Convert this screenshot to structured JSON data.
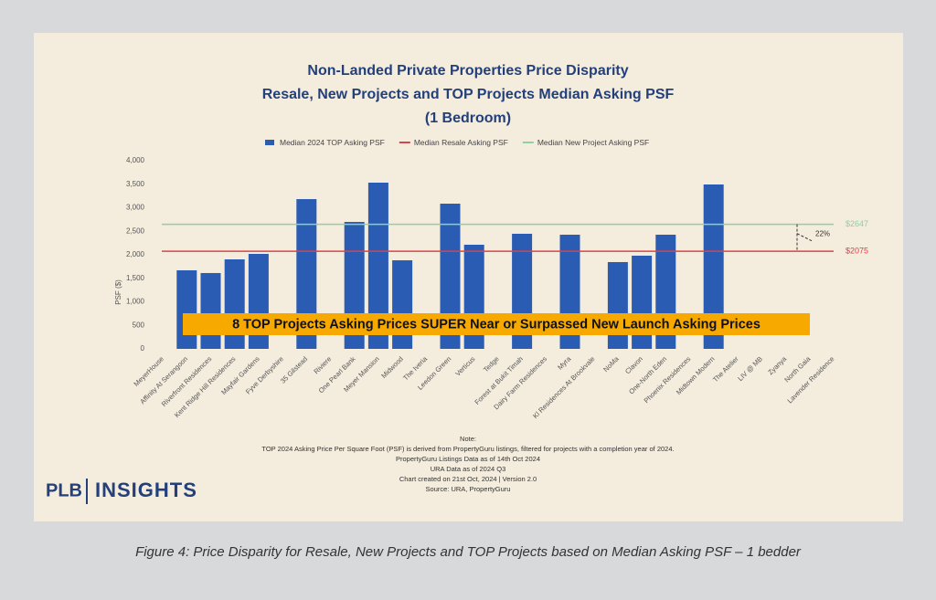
{
  "chart_data": {
    "type": "bar",
    "title": [
      "Non-Landed Private Properties Price Disparity",
      "Resale, New Projects and TOP Projects Median Asking PSF",
      "(1 Bedroom)"
    ],
    "y_label": "PSF ($)",
    "categories": [
      "MeyerHouse",
      "Affinity At Serangoon",
      "Riverfront Residences",
      "Kent Ridge Hill Residences",
      "Mayfair Gardens",
      "Fyve Derbyshire",
      "35 Gilstead",
      "Riviere",
      "One Pearl Bank",
      "Meyer Mansion",
      "Midwood",
      "The Iveria",
      "Leedon Green",
      "Verticus",
      "Tedge",
      "Forest at Bukit Timah",
      "Dairy Farm Residences",
      "Myra",
      "Kl Residences At Brookvale",
      "NoMa",
      "Clavon",
      "One-North Eden",
      "Phoenix Residences",
      "Midtown Modern",
      "The Atelier",
      "LIV @ MB",
      "Zyanya",
      "North Gaia",
      "Lavender Residence"
    ],
    "series": [
      {
        "name": "Median 2024 TOP Asking PSF",
        "color": "#2a5cb4",
        "values": [
          null,
          1670,
          1612,
          1903,
          2019,
          null,
          3184,
          null,
          2699,
          3534,
          1883,
          null,
          3087,
          2214,
          null,
          2447,
          null,
          2427,
          null,
          1845,
          1981,
          2427,
          null,
          3495,
          null,
          null,
          null,
          null,
          null
        ]
      }
    ],
    "reference_lines": [
      {
        "name": "Median Resale Asking PSF",
        "color": "#d9434a",
        "value": 2075,
        "label": "$2075"
      },
      {
        "name": "Median New Project Asking PSF",
        "color": "#8fd0a6",
        "value": 2647,
        "label": "$2647"
      }
    ],
    "annotation": "22%",
    "banner": "8 TOP Projects Asking Prices SUPER Near or Surpassed New Launch Asking Prices",
    "ylim": [
      0,
      4000
    ],
    "yticks": [
      0,
      500,
      {
        "value": 1000,
        "label": "1,000"
      },
      {
        "value": 1500,
        "label": "1,500"
      },
      {
        "value": 2000,
        "label": "2,000"
      },
      {
        "value": 2500,
        "label": "2,500"
      },
      {
        "value": 3000,
        "label": "3,000"
      },
      {
        "value": 3500,
        "label": "3,500"
      },
      {
        "value": 4000,
        "label": "4,000"
      }
    ],
    "notes": [
      "Note:",
      "TOP 2024 Asking Price Per Square Foot (PSF) is derived from PropertyGuru listings, filtered for projects with a completion year of 2024.",
      "PropertyGuru Listings Data as of 14th Oct 2024",
      "URA Data as of 2024 Q3",
      "Chart created on 21st Oct, 2024 | Version 2.0",
      "Source: URA, PropertyGuru"
    ]
  },
  "logo": {
    "left": "PLB",
    "right": "INSIGHTS"
  },
  "caption": "Figure 4: Price Disparity for Resale, New Projects and TOP Projects based on Median Asking PSF – 1 bedder"
}
